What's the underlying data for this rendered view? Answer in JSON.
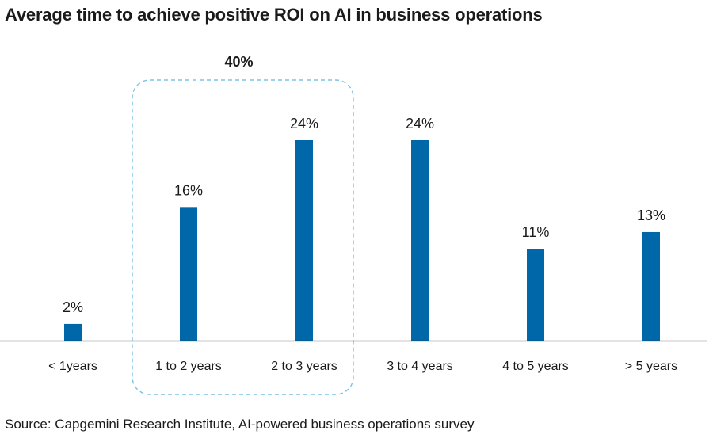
{
  "chart_data": {
    "type": "bar",
    "title": "Average time to achieve positive ROI on AI in business operations",
    "categories": [
      "< 1years",
      "1 to 2 years",
      "2 to 3 years",
      "3 to 4 years",
      "4 to 5 years",
      "> 5 years"
    ],
    "values": [
      2,
      16,
      24,
      24,
      11,
      13
    ],
    "value_labels": [
      "2%",
      "16%",
      "24%",
      "24%",
      "11%",
      "13%"
    ],
    "ylim": [
      0,
      24
    ],
    "grid": false,
    "bar_color": "#0067a8",
    "highlight": {
      "categories": [
        "1 to 2 years",
        "2 to 3 years"
      ],
      "label": "40%",
      "border_color": "#7cc3e6"
    },
    "source": "Source: Capgemini Research Institute, AI-powered business operations survey"
  }
}
